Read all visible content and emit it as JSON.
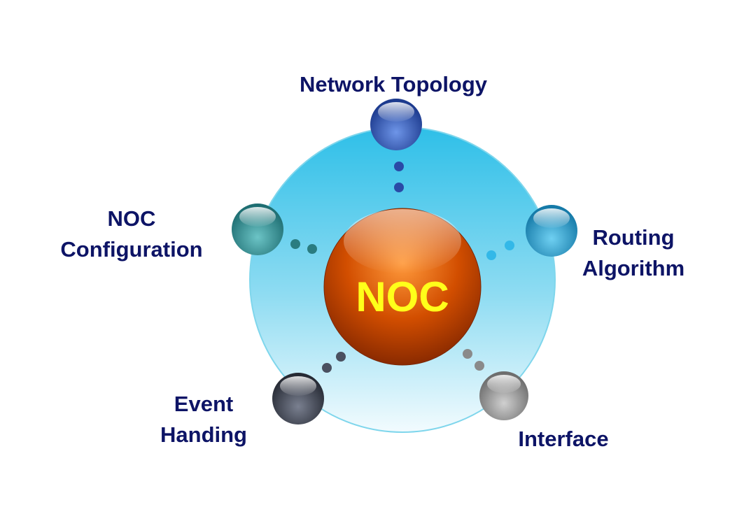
{
  "center": {
    "label": "NOC"
  },
  "nodes": [
    {
      "id": "top",
      "lines": [
        "Network Topology"
      ]
    },
    {
      "id": "left",
      "lines": [
        "NOC",
        "Configuration"
      ]
    },
    {
      "id": "right",
      "lines": [
        "Routing",
        "Algorithm"
      ]
    },
    {
      "id": "bottom-left",
      "lines": [
        "Event",
        "Handing"
      ]
    },
    {
      "id": "bottom-right",
      "lines": [
        "Interface"
      ]
    }
  ],
  "colors": {
    "label_text": "#0d1466",
    "center_text": "#ffff1a",
    "center_sphere": "#cc4a00",
    "ring": "#2ebfe8",
    "top_sphere": "#2a4fb0",
    "left_sphere": "#2a8c90",
    "right_sphere": "#1f8fc4",
    "bottom_left_sphere": "#3a3f4c",
    "bottom_right_sphere": "#8a8a8a"
  }
}
